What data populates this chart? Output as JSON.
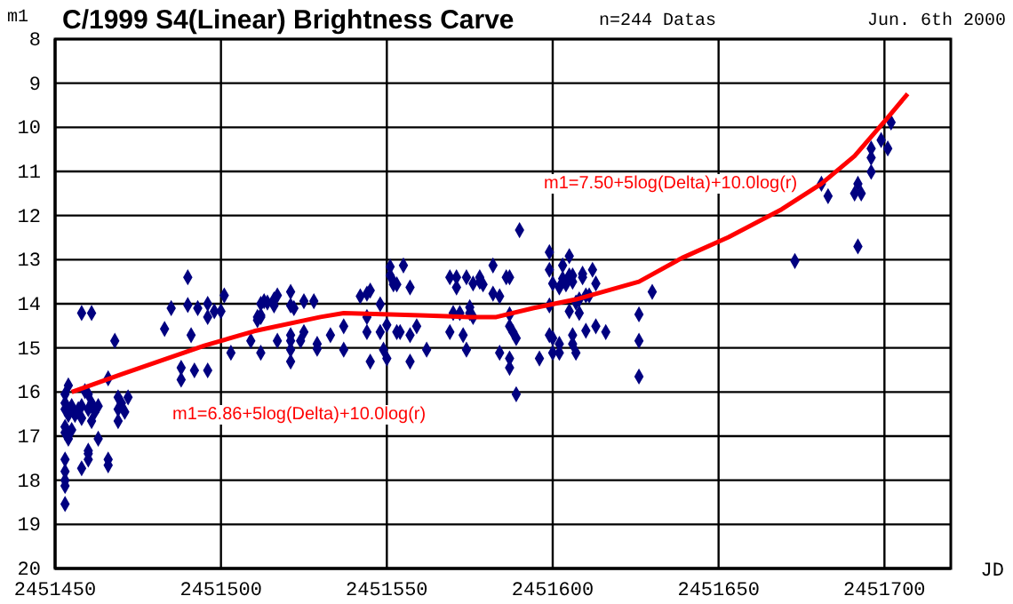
{
  "chart_data": {
    "type": "scatter",
    "title": "C/1999 S4(Linear) Brightness Carve",
    "xlabel": "JD",
    "ylabel": "m1",
    "annotations": [
      "n=244 Datas",
      "Jun. 6th 2000",
      "m1=6.86+5log(Delta)+10.0log(r)",
      "m1=7.50+5log(Delta)+10.0log(r)"
    ],
    "xlim": [
      2451450,
      2451720
    ],
    "xticks": [
      2451450,
      2451500,
      2451550,
      2451600,
      2451650,
      2451700
    ],
    "ylim": [
      20,
      8
    ],
    "yticks": [
      8,
      9,
      10,
      11,
      12,
      13,
      14,
      15,
      16,
      17,
      18,
      19,
      20
    ],
    "grid": true,
    "series": [
      {
        "marker": "diamond",
        "color": "#000080",
        "x": [
          2451490,
          2451458,
          2451461,
          2451485,
          2451490,
          2451493,
          2451496,
          2451496,
          2451498,
          2451500,
          2451501,
          2451512,
          2451513,
          2451517,
          2451511,
          2451511,
          2451517,
          2451509,
          2451512,
          2451503,
          2451491,
          2451483,
          2451468,
          2451488,
          2451488,
          2451492,
          2451496,
          2451466,
          2451453,
          2451454,
          2451453,
          2451453,
          2451455,
          2451456,
          2451457,
          2451458,
          2451458,
          2451459,
          2451460,
          2451460,
          2451461,
          2451462,
          2451463,
          2451461,
          2451454,
          2451453,
          2451454,
          2451455,
          2451453,
          2451469,
          2451470,
          2451469,
          2451471,
          2451472,
          2451469,
          2451463,
          2451458,
          2451460,
          2451460,
          2451466,
          2451466,
          2451453,
          2451453,
          2451453,
          2451453,
          2451453,
          2451460,
          2451512,
          2451512,
          2451514,
          2451516,
          2451516,
          2451521,
          2451521,
          2451522,
          2451521,
          2451521,
          2451521,
          2451521,
          2451525,
          2451528,
          2451525,
          2451524,
          2451529,
          2451529,
          2451533,
          2451537,
          2451537,
          2451542,
          2451544,
          2451545,
          2451548,
          2451544,
          2451544,
          2451545,
          2451548,
          2451549,
          2451550,
          2451550,
          2451551,
          2451551,
          2451552,
          2451552,
          2451553,
          2451553,
          2451555,
          2451554,
          2451557,
          2451557,
          2451557,
          2451559,
          2451562,
          2451569,
          2451571,
          2451571,
          2451574,
          2451576,
          2451578,
          2451578,
          2451582,
          2451579,
          2451582,
          2451584,
          2451586,
          2451587,
          2451569,
          2451570,
          2451572,
          2451573,
          2451574,
          2451575,
          2451575,
          2451576,
          2451587,
          2451587,
          2451588,
          2451589,
          2451584,
          2451587,
          2451587,
          2451589,
          2451590,
          2451599,
          2451599,
          2451600,
          2451602,
          2451603,
          2451603,
          2451604,
          2451605,
          2451605,
          2451606,
          2451606,
          2451607,
          2451608,
          2451609,
          2451609,
          2451610,
          2451611,
          2451612,
          2451613,
          2451599,
          2451605,
          2451608,
          2451599,
          2451600,
          2451602,
          2451600,
          2451602,
          2451596,
          2451606,
          2451606,
          2451607,
          2451610,
          2451613,
          2451616,
          2451626,
          2451626,
          2451626,
          2451630,
          2451673,
          2451681,
          2451683,
          2451691,
          2451693,
          2451692,
          2451692,
          2451696,
          2451696,
          2451696,
          2451699,
          2451701,
          2451702
        ],
        "values": [
          13.4,
          14.21,
          14.21,
          14.1,
          14.03,
          14.1,
          14.0,
          14.3,
          14.17,
          14.17,
          13.81,
          14.0,
          13.94,
          13.81,
          14.3,
          14.37,
          14.84,
          14.84,
          15.11,
          15.11,
          14.71,
          14.57,
          14.84,
          15.45,
          15.72,
          15.51,
          15.51,
          15.69,
          16.05,
          15.85,
          16.25,
          16.39,
          16.32,
          16.52,
          16.39,
          16.59,
          16.32,
          15.98,
          16.05,
          16.39,
          16.25,
          16.45,
          16.32,
          16.66,
          16.52,
          16.92,
          17.06,
          16.86,
          16.79,
          16.12,
          16.25,
          16.39,
          16.45,
          16.12,
          16.66,
          17.06,
          17.73,
          17.33,
          17.53,
          17.53,
          17.66,
          17.53,
          17.8,
          18.0,
          18.13,
          18.54,
          17.4,
          14.3,
          14.26,
          13.97,
          13.9,
          14.04,
          13.73,
          14.04,
          14.1,
          14.71,
          14.84,
          15.04,
          15.31,
          13.94,
          13.94,
          14.64,
          14.84,
          14.91,
          15.02,
          14.71,
          15.04,
          14.51,
          13.83,
          13.77,
          13.7,
          14.01,
          14.3,
          14.64,
          15.31,
          14.64,
          15.04,
          15.24,
          14.48,
          13.16,
          13.36,
          13.5,
          13.56,
          13.56,
          14.64,
          13.13,
          14.64,
          13.63,
          14.71,
          15.31,
          14.51,
          15.04,
          13.4,
          13.4,
          13.63,
          13.4,
          13.54,
          13.4,
          13.5,
          13.13,
          13.56,
          13.77,
          13.83,
          13.4,
          13.4,
          14.64,
          14.21,
          14.21,
          14.71,
          15.04,
          14.08,
          14.21,
          14.3,
          14.24,
          14.51,
          14.64,
          14.78,
          15.11,
          15.24,
          15.45,
          16.05,
          12.33,
          12.83,
          13.23,
          13.54,
          13.63,
          13.13,
          13.43,
          13.56,
          13.36,
          12.92,
          13.36,
          13.5,
          13.97,
          13.9,
          13.32,
          13.4,
          13.81,
          13.81,
          13.23,
          13.54,
          14.04,
          14.17,
          14.21,
          14.71,
          14.78,
          14.91,
          15.11,
          15.11,
          15.24,
          14.71,
          14.91,
          15.11,
          14.61,
          14.51,
          14.64,
          14.24,
          14.84,
          15.65,
          13.73,
          13.03,
          11.28,
          11.56,
          11.5,
          11.5,
          11.28,
          12.7,
          11.01,
          10.69,
          10.48,
          10.29,
          10.48,
          9.89
        ]
      },
      {
        "type": "line",
        "color": "#ff0000",
        "x": [
          2451455,
          2451470,
          2451495,
          2451510,
          2451530,
          2451537,
          2451551,
          2451560,
          2451575,
          2451583,
          2451594,
          2451607,
          2451626,
          2451639,
          2451653,
          2451669,
          2451681,
          2451691,
          2451701,
          2451707
        ],
        "values": [
          16.0,
          15.6,
          14.95,
          14.62,
          14.3,
          14.21,
          14.24,
          14.26,
          14.3,
          14.3,
          14.1,
          13.9,
          13.5,
          12.96,
          12.49,
          11.86,
          11.28,
          10.65,
          9.78,
          9.24
        ]
      }
    ]
  }
}
